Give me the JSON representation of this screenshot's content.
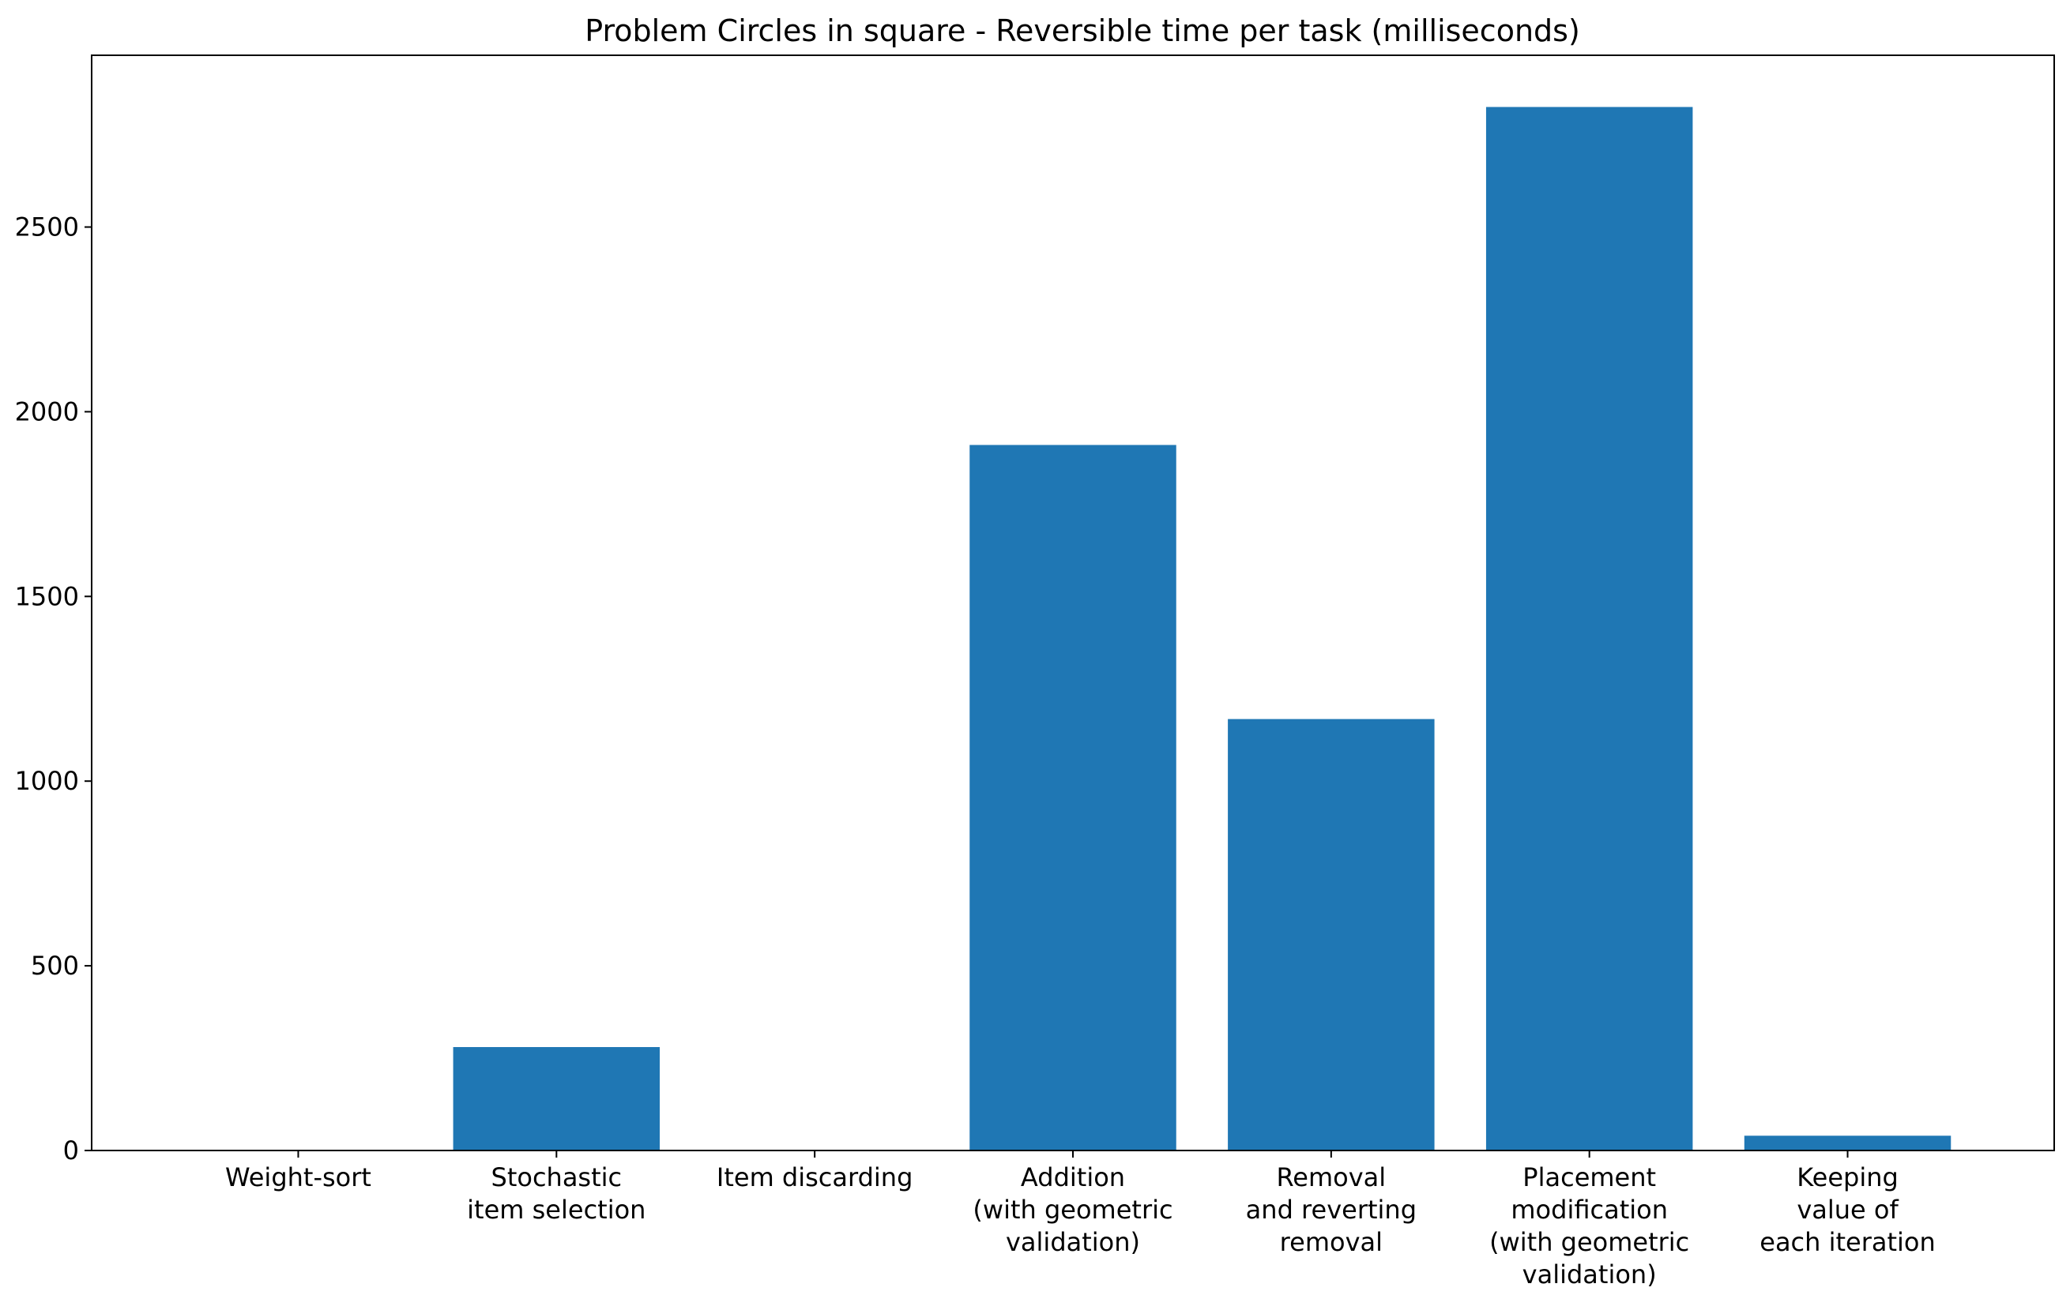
{
  "chart_data": {
    "type": "bar",
    "title": "Problem Circles in square - Reversible time per task (milliseconds)",
    "xlabel": "",
    "ylabel": "",
    "categories": [
      [
        "Weight-sort"
      ],
      [
        "Stochastic",
        "item selection"
      ],
      [
        "Item discarding"
      ],
      [
        "Addition",
        "(with geometric",
        "validation)"
      ],
      [
        "Removal",
        "and reverting",
        "removal"
      ],
      [
        "Placement",
        "modification",
        "(with geometric",
        "validation)"
      ],
      [
        "Keeping",
        "value of",
        "each iteration"
      ]
    ],
    "values": [
      0,
      280,
      0,
      1910,
      1168,
      2825,
      40
    ],
    "ylim": [
      0,
      2965
    ],
    "yticks": [
      0,
      500,
      1000,
      1500,
      2000,
      2500
    ],
    "bar_color": "#1f77b4",
    "grid": false,
    "legend": "none"
  }
}
